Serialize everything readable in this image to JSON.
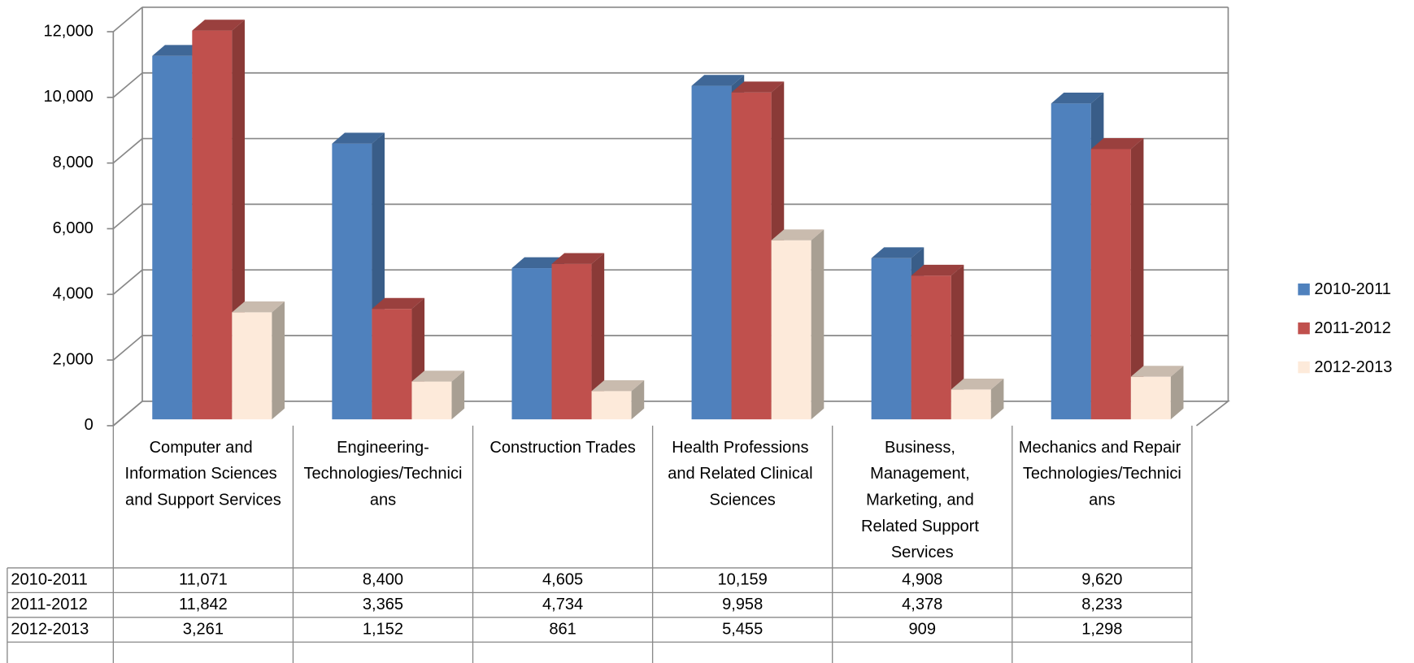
{
  "chart_data": {
    "type": "bar",
    "categories": [
      "Computer and Information Sciences and Support Services",
      "Engineering-Technologies/Technicians",
      "Construction Trades",
      "Health Professions and Related Clinical Sciences",
      "Business, Management, Marketing, and Related Support Services",
      "Mechanics and Repair Technologies/Technicians"
    ],
    "series": [
      {
        "name": "2010-2011",
        "color": "#4F81BD",
        "values": [
          11071,
          8400,
          4605,
          10159,
          4908,
          9620
        ],
        "value_labels": [
          "11,071",
          "8,400",
          "4,605",
          "10,159",
          "4,908",
          "9,620"
        ]
      },
      {
        "name": "2011-2012",
        "color": "#C0504D",
        "values": [
          11842,
          3365,
          4734,
          9958,
          4378,
          8233
        ],
        "value_labels": [
          "11,842",
          "3,365",
          "4,734",
          "9,958",
          "4,378",
          "8,233"
        ]
      },
      {
        "name": "2012-2013",
        "color": "#FDEADA",
        "values": [
          3261,
          1152,
          861,
          5455,
          909,
          1298
        ],
        "value_labels": [
          "3,261",
          "1,152",
          "861",
          "5,455",
          "909",
          "1,298"
        ]
      }
    ],
    "ylim": [
      0,
      12000
    ],
    "yticks": [
      0,
      {
        "value": 2000,
        "label": "2,000"
      },
      {
        "value": 4000,
        "label": "4,000"
      },
      {
        "value": 6000,
        "label": "6,000"
      },
      {
        "value": 8000,
        "label": "8,000"
      },
      {
        "value": 10000,
        "label": "10,000"
      },
      {
        "value": 12000,
        "label": "12,000"
      }
    ],
    "grid": true,
    "legend": "right"
  }
}
